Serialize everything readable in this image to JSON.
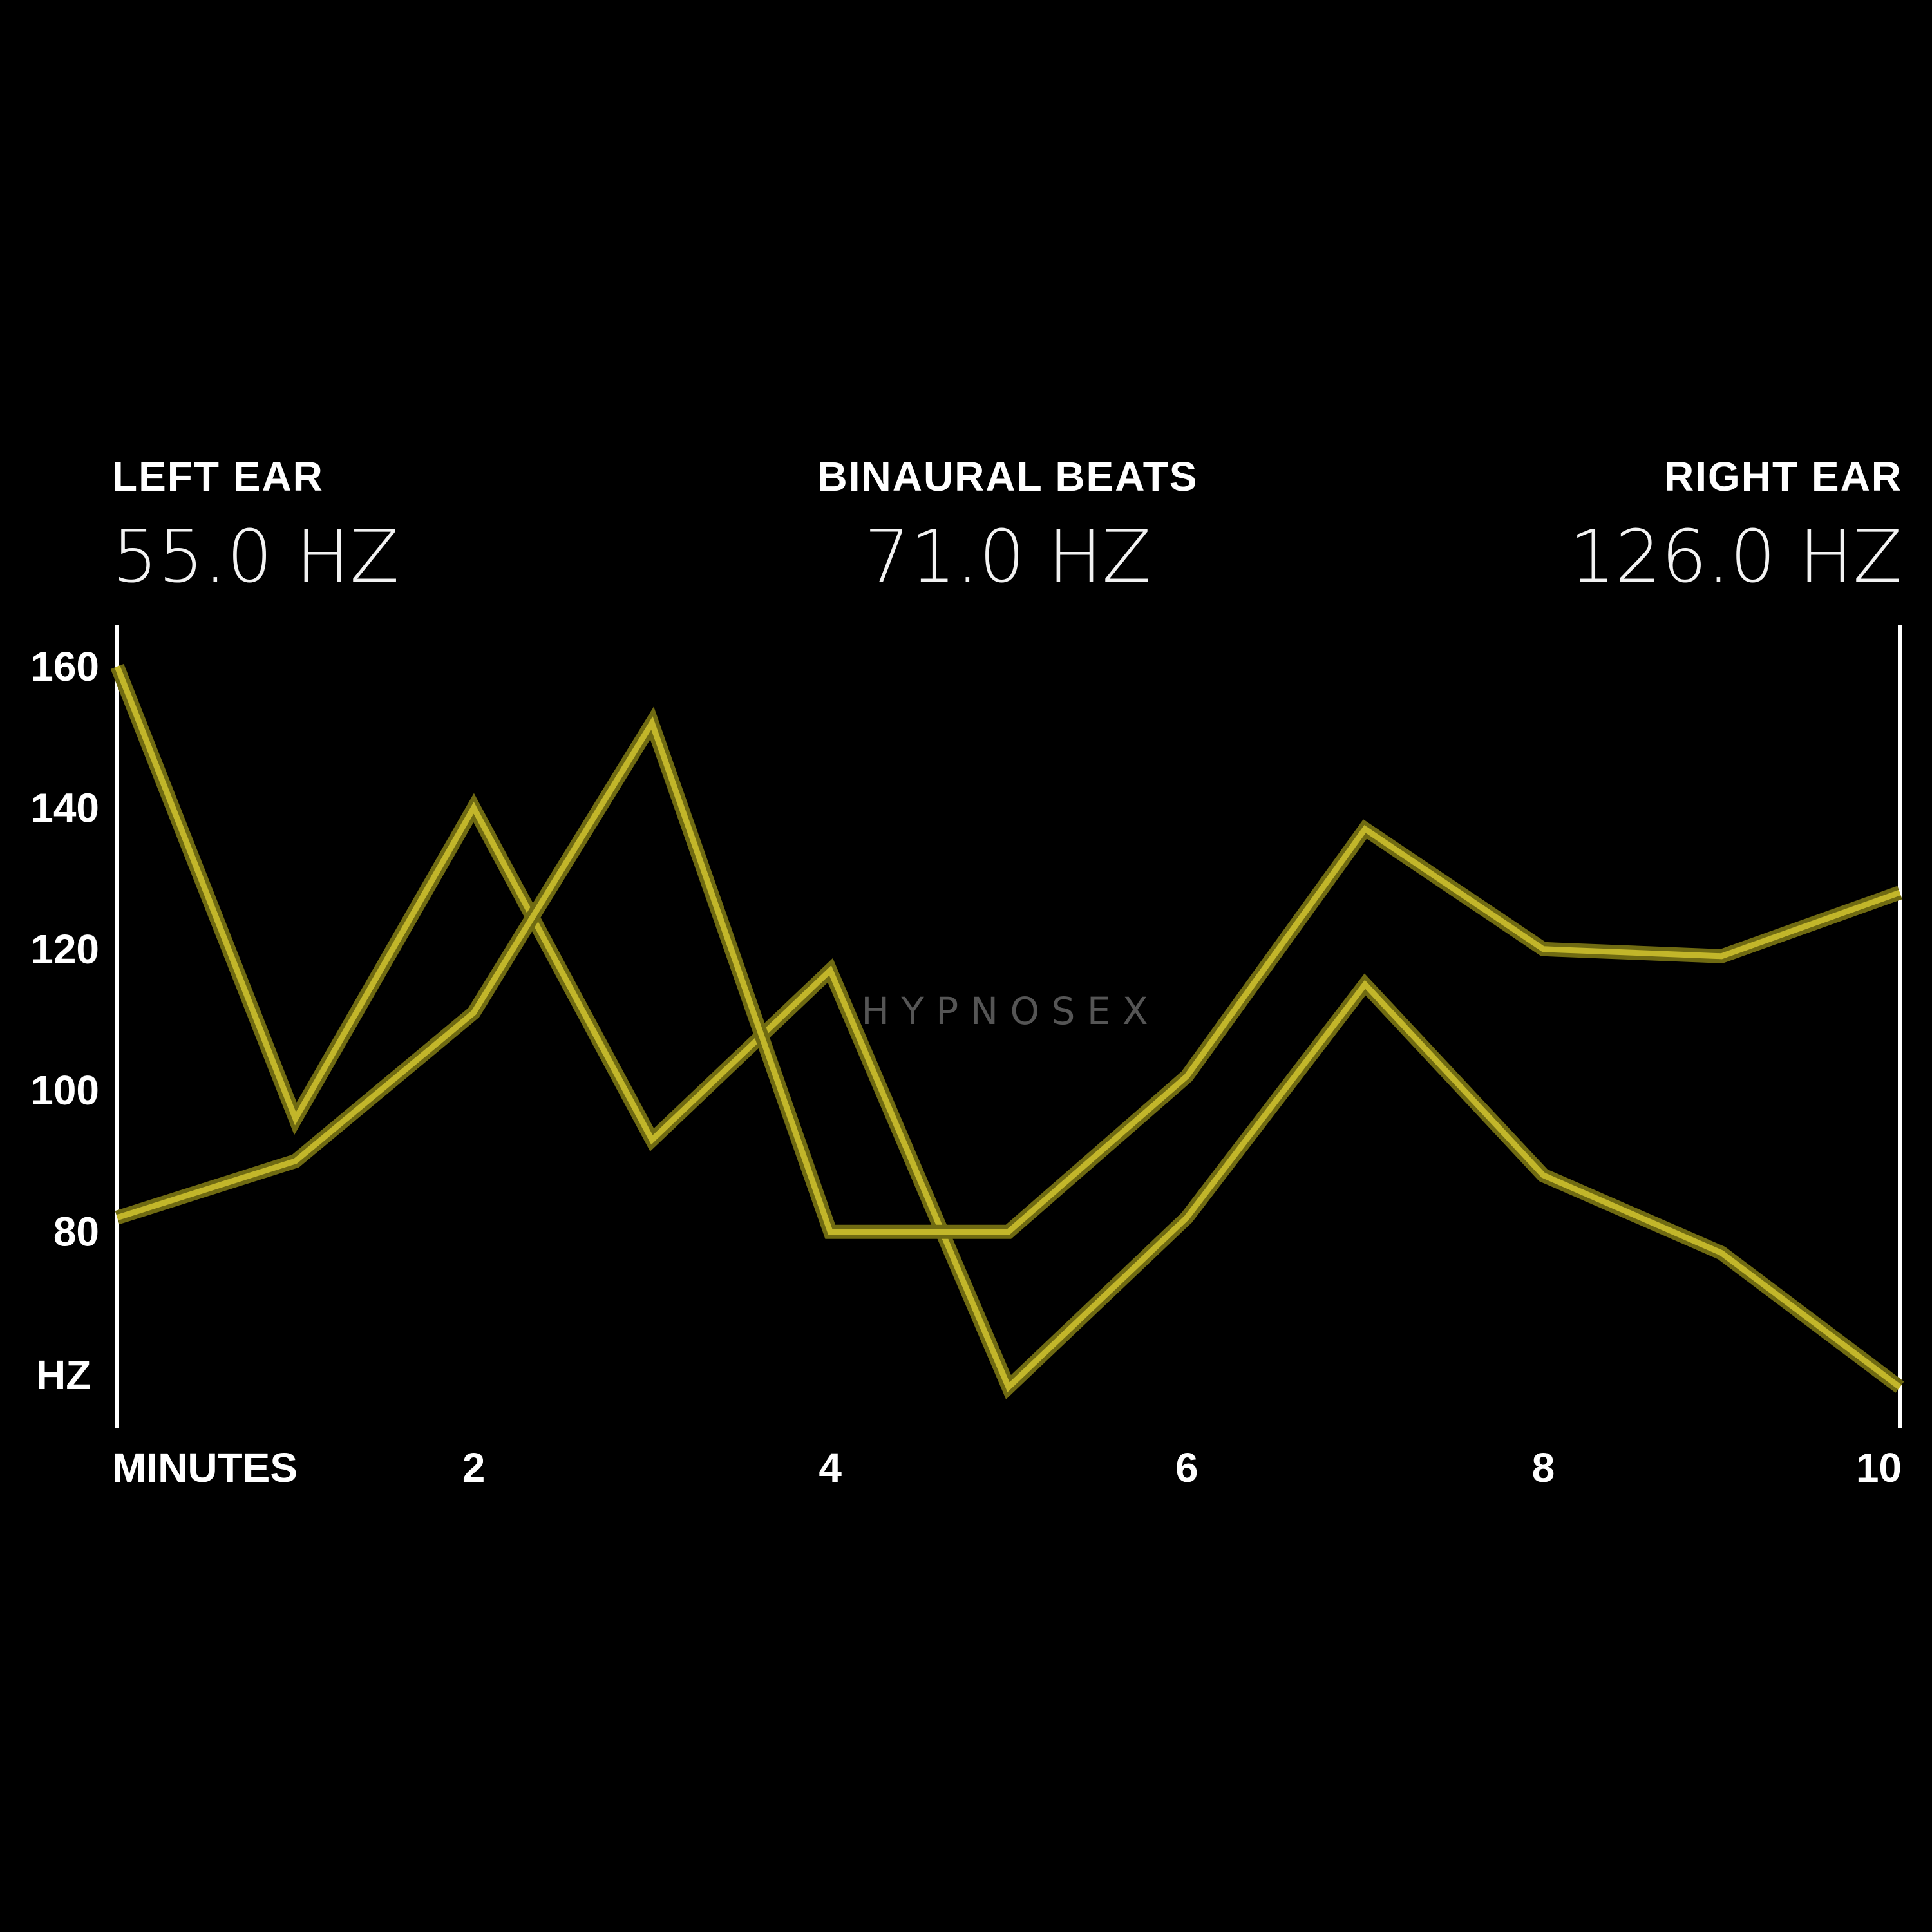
{
  "header": {
    "left": {
      "label": "LEFT EAR",
      "value": "55.0 HZ"
    },
    "center": {
      "label": "BINAURAL BEATS",
      "value": "71.0 HZ"
    },
    "right": {
      "label": "RIGHT EAR",
      "value": "126.0 HZ"
    }
  },
  "watermark": "H Y P N O S E X",
  "colors": {
    "background": "#000000",
    "line_outer": "#6f6a12",
    "line_inner": "#c2b62a",
    "axis": "#ffffff"
  },
  "chart_data": {
    "type": "line",
    "xlabel": "MINUTES",
    "ylabel": "HZ",
    "xlim": [
      0,
      10
    ],
    "ylim": [
      57,
      163
    ],
    "x_ticks": [
      2,
      4,
      6,
      8,
      10
    ],
    "y_ticks": [
      80,
      100,
      120,
      140,
      160
    ],
    "grid": false,
    "x": [
      0,
      1,
      2,
      3,
      4,
      5,
      6,
      7,
      8,
      9,
      10
    ],
    "series": [
      {
        "values": [
          160,
          96,
          140,
          93,
          117,
          58,
          82,
          115,
          88,
          77,
          58
        ]
      },
      {
        "values": [
          82,
          90,
          111,
          152,
          80,
          80,
          102,
          137,
          120,
          119,
          128
        ]
      }
    ]
  }
}
